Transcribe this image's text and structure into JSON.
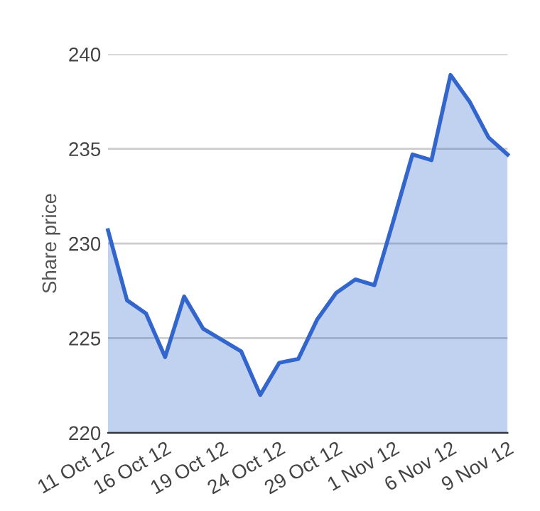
{
  "chart_data": {
    "type": "area",
    "ylabel": "Share price",
    "categories": [
      "11 Oct 12",
      null,
      null,
      "16 Oct 12",
      null,
      null,
      "19 Oct 12",
      null,
      null,
      "24 Oct 12",
      null,
      null,
      "29 Oct 12",
      null,
      null,
      "1 Nov 12",
      null,
      null,
      "6 Nov 12",
      null,
      null,
      "9 Nov 12"
    ],
    "series": [
      {
        "color": "#3366cc",
        "values": [
          230.7,
          227.0,
          226.3,
          224.0,
          227.2,
          225.5,
          224.9,
          224.3,
          222.0,
          223.7,
          223.9,
          226.0,
          227.4,
          228.1,
          227.8,
          231.2,
          234.7,
          234.4,
          238.9,
          237.5,
          235.6,
          234.7
        ]
      }
    ],
    "ylim": [
      220,
      240
    ],
    "yticks": [
      220,
      225,
      230,
      235,
      240
    ],
    "grid": "y",
    "legend": false
  }
}
